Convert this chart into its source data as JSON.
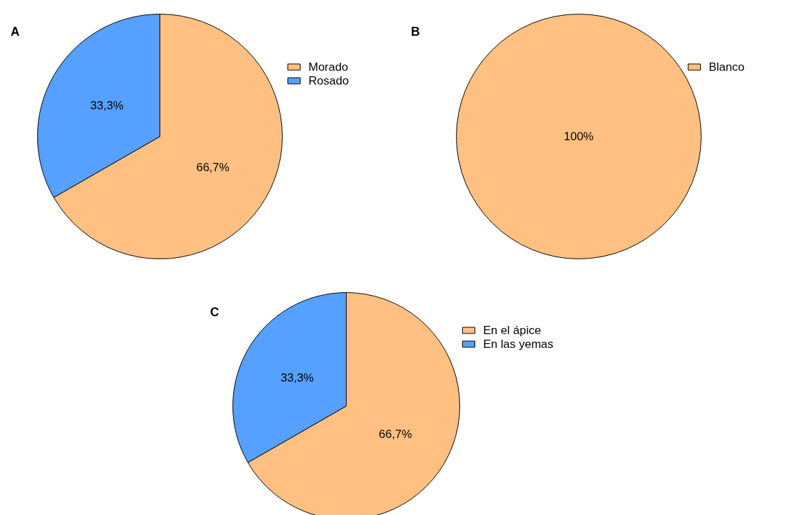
{
  "chart_data": [
    {
      "type": "pie",
      "title": "A",
      "categories": [
        "Morado",
        "Rosado"
      ],
      "values": [
        66.7,
        33.3
      ],
      "colors": [
        "#ffc082",
        "#56a0ff"
      ],
      "value_labels": [
        "66,7%",
        "33,3%"
      ],
      "legend": "right"
    },
    {
      "type": "pie",
      "title": "B",
      "categories": [
        "Blanco"
      ],
      "values": [
        100
      ],
      "colors": [
        "#ffc082"
      ],
      "value_labels": [
        "100%"
      ],
      "legend": "right"
    },
    {
      "type": "pie",
      "title": "C",
      "categories": [
        "En el ápice",
        "En las yemas"
      ],
      "values": [
        66.7,
        33.3
      ],
      "colors": [
        "#ffc082",
        "#56a0ff"
      ],
      "value_labels": [
        "66,7%",
        "33,3%"
      ],
      "legend": "right"
    }
  ]
}
